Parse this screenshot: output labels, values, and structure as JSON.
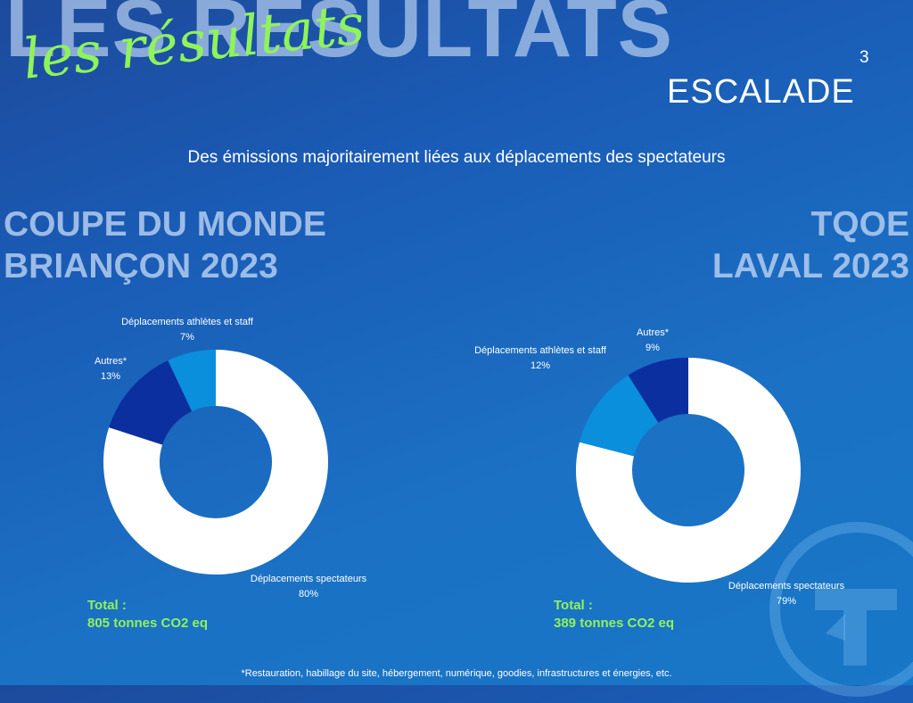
{
  "header": {
    "background_title": "LES RÉSULTATS",
    "script_title": "les résultats",
    "page_number": "3",
    "section": "ESCALADE"
  },
  "subtitle": "Des émissions majoritairement liées aux déplacements des spectateurs",
  "left_event": {
    "title_line1": "COUPE DU MONDE",
    "title_line2": "BRIANÇON 2023",
    "total_label": "Total :",
    "total_value": "805 tonnes CO2 eq"
  },
  "right_event": {
    "title_line1": "TQOE",
    "title_line2": "LAVAL 2023",
    "total_label": "Total :",
    "total_value": "389 tonnes CO2  eq"
  },
  "footnote": "*Restauration, habillage du site, hébergement, numérique, goodies, infrastructures et énergies, etc.",
  "colors": {
    "spectators": "#ffffff",
    "others": "#0c2f9f",
    "athletes": "#0a8fdd",
    "accent": "#8ff35a"
  },
  "chart_data": [
    {
      "type": "pie",
      "title": "",
      "labels": [
        "Déplacements spectateurs",
        "Autres*",
        "Déplacements athlètes et staff"
      ],
      "values": [
        80,
        13,
        7
      ],
      "value_labels": [
        "80%",
        "13%",
        "7%"
      ]
    },
    {
      "type": "pie",
      "title": "",
      "labels": [
        "Déplacements spectateurs",
        "Déplacements athlètes et staff",
        "Autres*"
      ],
      "values": [
        79,
        12,
        9
      ],
      "value_labels": [
        "79%",
        "12%",
        "9%"
      ]
    }
  ]
}
